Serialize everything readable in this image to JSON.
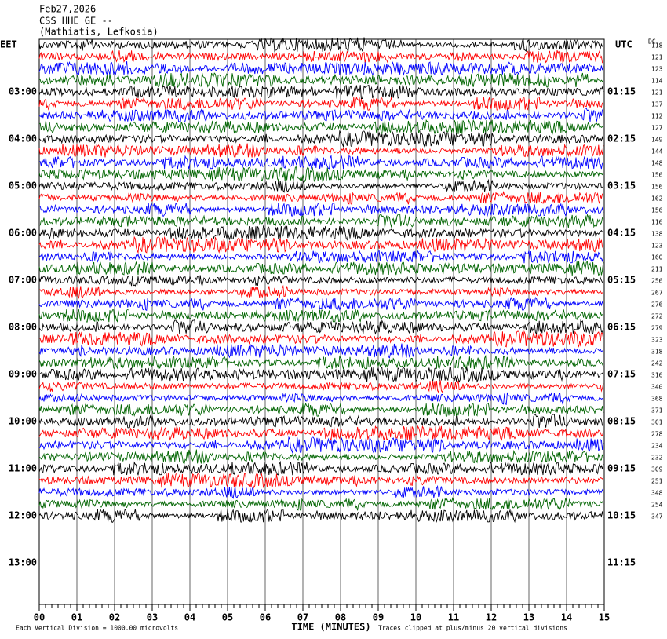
{
  "header": {
    "date": "Feb27,2026",
    "station": "CSS HHE GE --",
    "location": "(Mathiatis, Lefkosia)"
  },
  "left_axis": {
    "label": "EET",
    "ticks": [
      "03:00",
      "04:00",
      "05:00",
      "06:00",
      "07:00",
      "08:00",
      "09:00",
      "10:00",
      "11:00",
      "12:00",
      "13:00"
    ]
  },
  "right_axis": {
    "label": "UTC",
    "ticks": [
      "01:15",
      "02:15",
      "03:15",
      "04:15",
      "05:15",
      "06:15",
      "07:15",
      "08:15",
      "09:15",
      "10:15",
      "11:15"
    ]
  },
  "dc": {
    "label": "DC",
    "values": [
      118,
      121,
      123,
      114,
      121,
      137,
      112,
      127,
      149,
      144,
      148,
      156,
      156,
      162,
      156,
      116,
      138,
      123,
      160,
      211,
      256,
      267,
      276,
      272,
      279,
      323,
      318,
      242,
      316,
      340,
      368,
      371,
      301,
      278,
      234,
      232,
      309,
      251,
      348,
      254,
      347
    ]
  },
  "x_axis": {
    "label": "TIME (MINUTES)",
    "ticks": [
      "00",
      "01",
      "02",
      "03",
      "04",
      "05",
      "06",
      "07",
      "08",
      "09",
      "10",
      "11",
      "12",
      "13",
      "14",
      "15"
    ]
  },
  "footer": {
    "scale": "Each Vertical Division = 1000.00 microvolts",
    "clip": "Traces clipped at plus/minus 20 vertical divisions"
  },
  "trace_colors": [
    "#000000",
    "#ff0000",
    "#0000ff",
    "#006400"
  ]
}
